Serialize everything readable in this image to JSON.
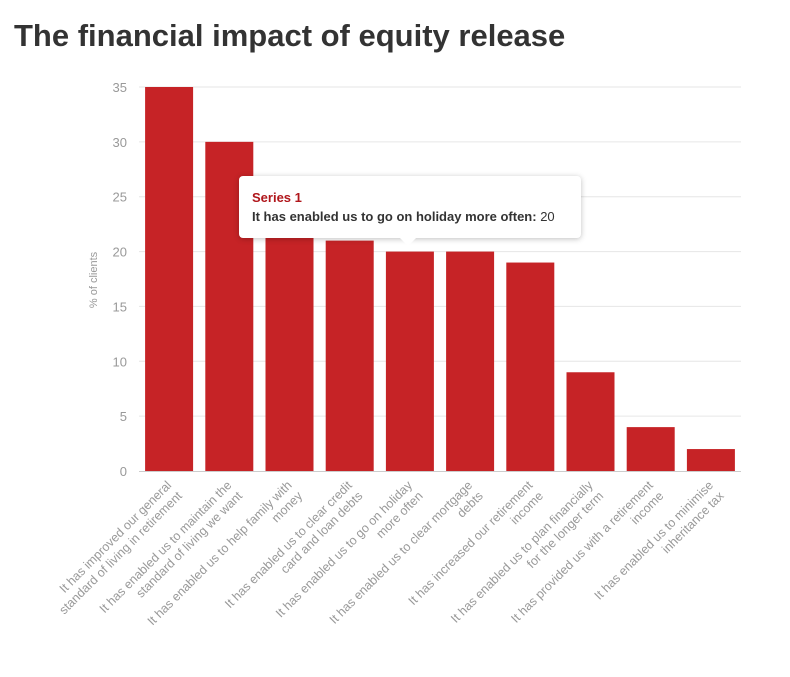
{
  "title": "The financial impact of equity release",
  "chart_data": {
    "type": "bar",
    "title": "The financial impact of equity release",
    "xlabel": "",
    "ylabel": "% of clients",
    "ylim": [
      0,
      35
    ],
    "yticks": [
      0,
      5,
      10,
      15,
      20,
      25,
      30,
      35
    ],
    "grid": true,
    "bar_color": "#c62326",
    "categories": [
      [
        "It has improved our general",
        "standard of living in retirement"
      ],
      [
        "It has enabled us to maintain the",
        "standard of living we want"
      ],
      [
        "It has enabled us to help family with",
        "money"
      ],
      [
        "It has enabled us to clear credit",
        "card and loan debts"
      ],
      [
        "It has enabled us to go on holiday",
        "more often"
      ],
      [
        "It has enabled us to clear mortgage",
        "debts"
      ],
      [
        "It has increased our retirement",
        "income"
      ],
      [
        "It has enabled us to plan financially",
        "for the longer term"
      ],
      [
        "It has provided us with a retirement",
        "income"
      ],
      [
        "It has enabled us to minimise",
        "inheritance tax"
      ]
    ],
    "series": [
      {
        "name": "Series 1",
        "values": [
          35,
          30,
          22,
          21,
          20,
          20,
          19,
          9,
          4,
          2
        ]
      }
    ]
  },
  "tooltip": {
    "series": "Series 1",
    "category": "It has enabled us to go on holiday more often:",
    "value": "20"
  }
}
